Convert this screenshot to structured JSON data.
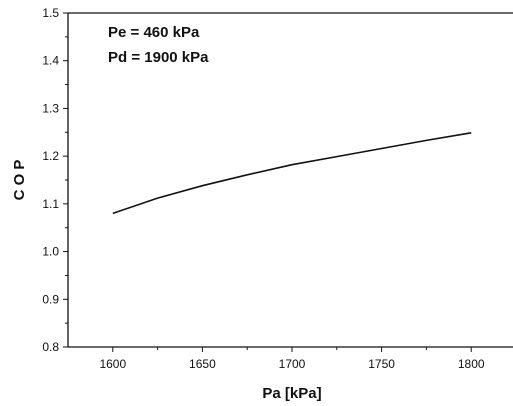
{
  "chart_data": {
    "type": "line",
    "xlabel": "Pa [kPa]",
    "ylabel": "C O P",
    "xlim": [
      1575,
      1825
    ],
    "ylim": [
      0.8,
      1.5
    ],
    "xticks": [
      1600,
      1650,
      1700,
      1750,
      1800
    ],
    "yticks": [
      0.8,
      0.9,
      1.0,
      1.1,
      1.2,
      1.3,
      1.4,
      1.5
    ],
    "xtick_labels": [
      "1600",
      "1650",
      "1700",
      "1750",
      "1800"
    ],
    "ytick_labels": [
      "0.8",
      "0.9",
      "1.0",
      "1.1",
      "1.2",
      "1.3",
      "1.4",
      "1.5"
    ],
    "annotations": [
      "Pe = 460 kPa",
      "Pd = 1900 kPa"
    ],
    "grid": false,
    "series": [
      {
        "x": [
          1600,
          1625,
          1650,
          1675,
          1700,
          1725,
          1750,
          1775,
          1800
        ],
        "y": [
          1.08,
          1.112,
          1.138,
          1.161,
          1.182,
          1.199,
          1.216,
          1.233,
          1.249
        ]
      }
    ]
  }
}
